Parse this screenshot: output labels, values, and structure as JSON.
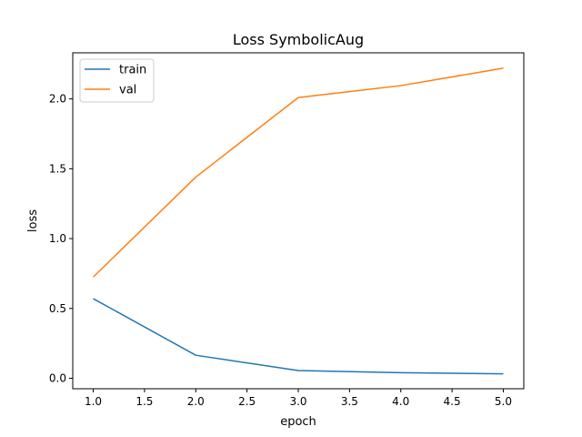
{
  "chart_data": {
    "type": "line",
    "title": "Loss SymbolicAug",
    "xlabel": "epoch",
    "ylabel": "loss",
    "xlim": [
      0.8,
      5.2
    ],
    "ylim": [
      -0.075,
      2.33
    ],
    "grid": false,
    "legend_position": "top-left",
    "x_ticks": [
      1.0,
      1.5,
      2.0,
      2.5,
      3.0,
      3.5,
      4.0,
      4.5,
      5.0
    ],
    "x_tick_labels": [
      "1.0",
      "1.5",
      "2.0",
      "2.5",
      "3.0",
      "3.5",
      "4.0",
      "4.5",
      "5.0"
    ],
    "y_ticks": [
      0.0,
      0.5,
      1.0,
      1.5,
      2.0
    ],
    "y_tick_labels": [
      "0.0",
      "0.5",
      "1.0",
      "1.5",
      "2.0"
    ],
    "x": [
      1,
      2,
      3,
      4,
      5
    ],
    "series": [
      {
        "name": "train",
        "color": "#1f77b4",
        "values": [
          0.57,
          0.165,
          0.055,
          0.04,
          0.032
        ]
      },
      {
        "name": "val",
        "color": "#ff7f0e",
        "values": [
          0.725,
          1.44,
          2.01,
          2.095,
          2.22
        ]
      }
    ]
  }
}
